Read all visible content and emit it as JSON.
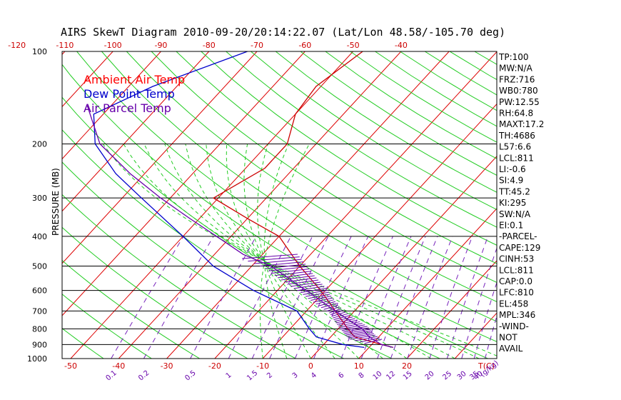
{
  "chart_data": {
    "type": "line",
    "title": "AIRS SkewT Diagram 2010-09-20/20:14:22.07 (Lat/Lon 48.58/-105.70 deg)",
    "ylabel": "PRESSURE (MB)",
    "pressure_ticks": [
      "100",
      "200",
      "300",
      "400",
      "500",
      "600",
      "700",
      "800",
      "900",
      "1000"
    ],
    "top_temp_ticks": [
      "-120",
      "-110",
      "-100",
      "-90",
      "-80",
      "-70",
      "-60",
      "-50",
      "-40"
    ],
    "bottom_temp_ticks": [
      "-50",
      "-40",
      "-30",
      "-20",
      "-10",
      "0",
      "10",
      "20"
    ],
    "bottom_temp_unit": "T(C)",
    "mixing_ratio_ticks": [
      "0.1",
      "0.2",
      "0.5",
      "1",
      "1.5",
      "2",
      "3",
      "4",
      "6",
      "8",
      "10",
      "12",
      "15",
      "20",
      "25",
      "30",
      "35",
      "40"
    ],
    "mixing_ratio_unit": "(g/kg)",
    "legend": [
      {
        "label": "Ambient Air Temp",
        "color": "#ff0000"
      },
      {
        "label": "Dew Point Temp",
        "color": "#0000cc"
      },
      {
        "label": "Air Parcel Temp",
        "color": "#6600aa"
      }
    ],
    "series": [
      {
        "name": "Ambient Air Temp",
        "color": "#cc0000",
        "points": [
          [
            100,
            -48
          ],
          [
            130,
            -51
          ],
          [
            160,
            -50
          ],
          [
            200,
            -46
          ],
          [
            240,
            -46
          ],
          [
            300,
            -51
          ],
          [
            350,
            -40
          ],
          [
            400,
            -30
          ],
          [
            500,
            -20
          ],
          [
            600,
            -11
          ],
          [
            700,
            -4
          ],
          [
            800,
            2
          ],
          [
            850,
            5
          ],
          [
            900,
            12
          ],
          [
            920,
            15
          ]
        ]
      },
      {
        "name": "Dew Point Temp",
        "color": "#0000cc",
        "points": [
          [
            100,
            -72
          ],
          [
            130,
            -85
          ],
          [
            160,
            -92
          ],
          [
            200,
            -86
          ],
          [
            250,
            -76
          ],
          [
            300,
            -66
          ],
          [
            400,
            -50
          ],
          [
            500,
            -38
          ],
          [
            600,
            -25
          ],
          [
            700,
            -12
          ],
          [
            800,
            -6
          ],
          [
            850,
            -3
          ],
          [
            900,
            4
          ],
          [
            920,
            9
          ]
        ]
      },
      {
        "name": "Air Parcel Temp",
        "color": "#6600aa",
        "points": [
          [
            150,
            -95
          ],
          [
            200,
            -85
          ],
          [
            250,
            -73
          ],
          [
            300,
            -62
          ],
          [
            350,
            -52
          ],
          [
            400,
            -43
          ],
          [
            458,
            -34
          ],
          [
            500,
            -26
          ],
          [
            600,
            -14
          ],
          [
            700,
            -4
          ],
          [
            800,
            5
          ],
          [
            850,
            8
          ],
          [
            900,
            12
          ],
          [
            920,
            15
          ]
        ]
      }
    ]
  },
  "indices": [
    "TP:100",
    "MW:N/A",
    "FRZ:716",
    "WB0:780",
    "PW:12.55",
    "RH:64.8",
    "MAXT:17.2",
    "TH:4686",
    "L57:6.6",
    "LCL:811",
    "LI:-0.6",
    "SI:4.9",
    "TT:45.2",
    "KI:295",
    "SW:N/A",
    "EI:0.1",
    "-PARCEL-",
    "CAPE:129",
    "CINH:53",
    "LCL:811",
    "CAP:0.0",
    "LFC:810",
    "EL:458",
    "MPL:346",
    "-WIND-",
    "NOT",
    "AVAIL"
  ]
}
